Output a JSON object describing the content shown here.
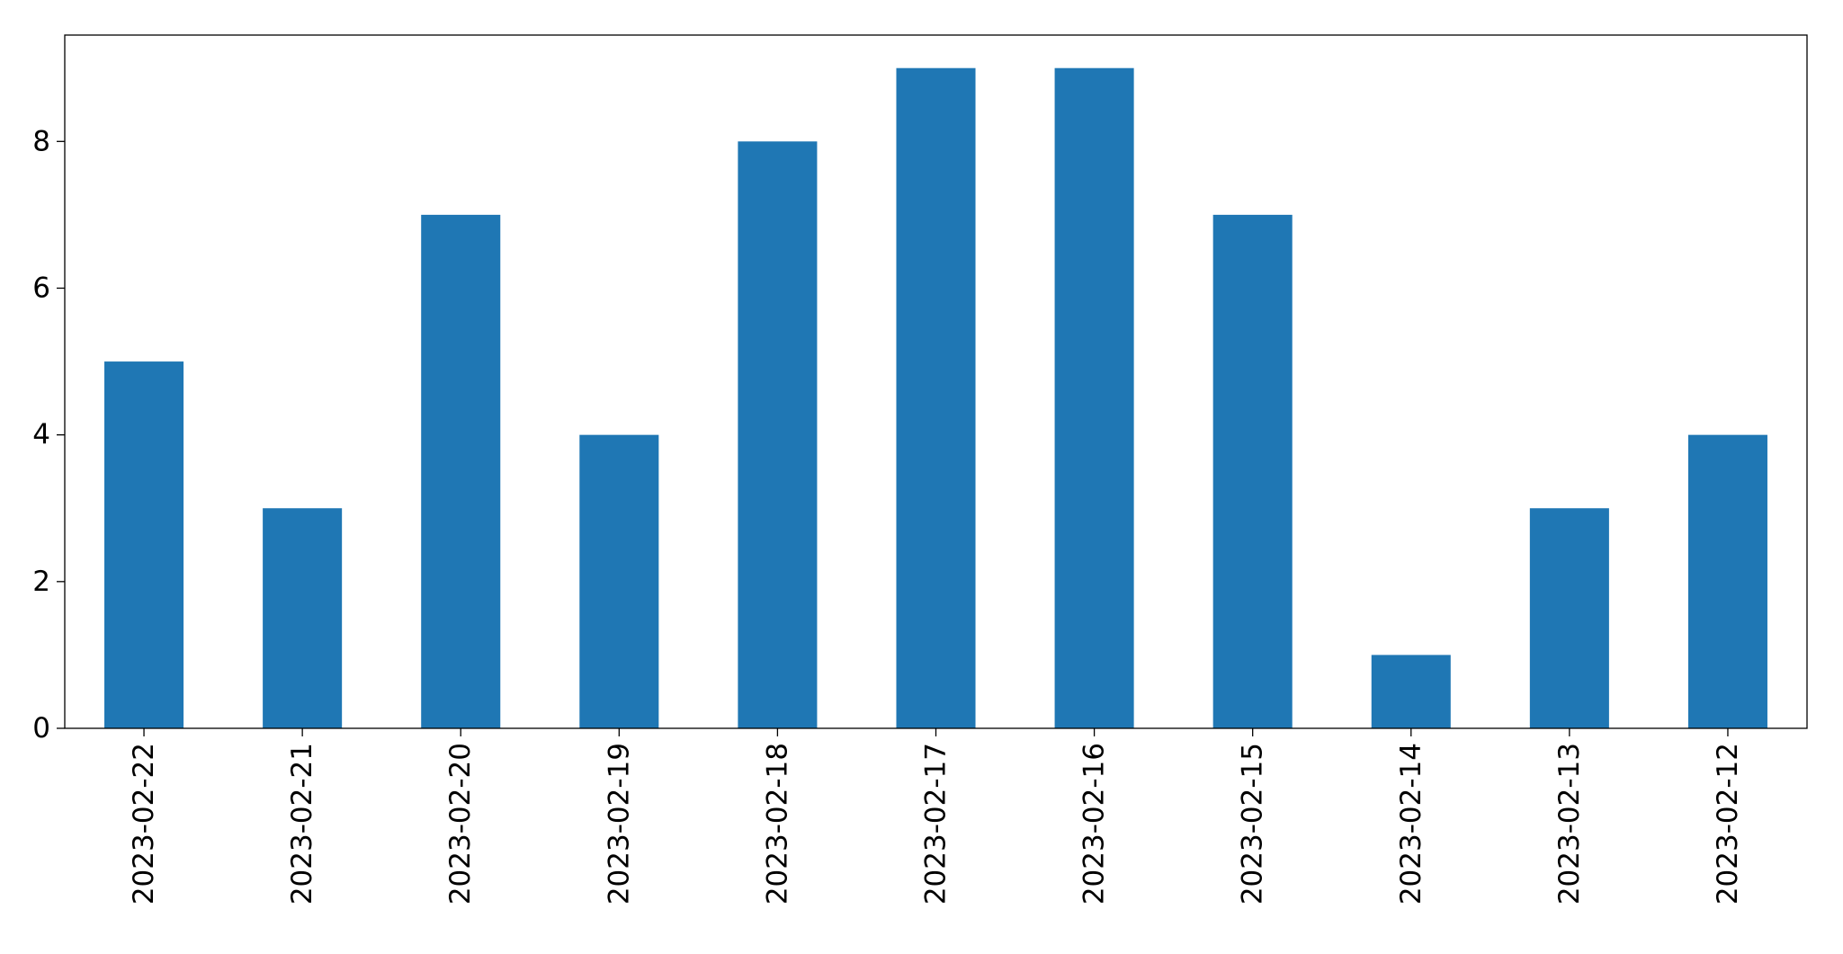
{
  "chart_data": {
    "type": "bar",
    "categories": [
      "2023-02-22",
      "2023-02-21",
      "2023-02-20",
      "2023-02-19",
      "2023-02-18",
      "2023-02-17",
      "2023-02-16",
      "2023-02-15",
      "2023-02-14",
      "2023-02-13",
      "2023-02-12"
    ],
    "values": [
      5,
      3,
      7,
      4,
      8,
      9,
      9,
      7,
      1,
      3,
      4
    ],
    "color": "#1f77b4",
    "ylim": [
      0,
      9.45
    ],
    "yticks": [
      0,
      2,
      4,
      6,
      8
    ],
    "grid": false
  }
}
